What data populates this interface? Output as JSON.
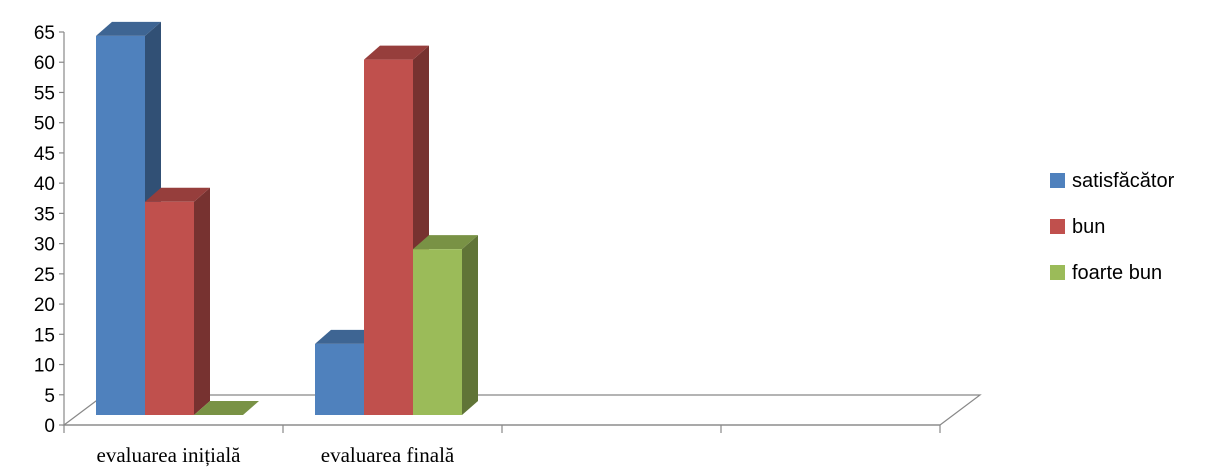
{
  "chart_data": {
    "type": "bar",
    "title": "",
    "xlabel": "",
    "ylabel": "",
    "categories": [
      "evaluarea inițială",
      "evaluarea finală",
      "",
      ""
    ],
    "series": [
      {
        "name": "satisfăcător",
        "values": [
          64,
          12,
          null,
          null
        ],
        "color": "#4F81BD"
      },
      {
        "name": "bun",
        "values": [
          36,
          60,
          null,
          null
        ],
        "color": "#C0504D"
      },
      {
        "name": "foarte bun",
        "values": [
          0,
          28,
          null,
          null
        ],
        "color": "#9BBB59"
      }
    ],
    "ylim": [
      0,
      65
    ],
    "yticks": [
      "0",
      "5",
      "10",
      "15",
      "20",
      "25",
      "30",
      "35",
      "40",
      "45",
      "50",
      "55",
      "60",
      "65"
    ],
    "grid": false,
    "legend": "right",
    "style": "3d-clustered-column"
  }
}
